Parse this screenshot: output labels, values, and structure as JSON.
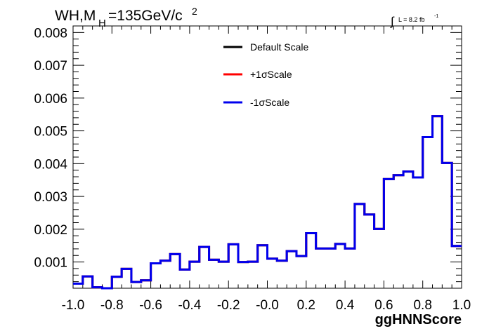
{
  "chart_data": {
    "type": "line",
    "title": {
      "main": "WH,M",
      "sub": "H",
      "rest": "=135GeV/c",
      "sup": "2"
    },
    "lumi": {
      "integral": "∫",
      "text": "L = 8.2 fb",
      "sup": "-1"
    },
    "xlabel": "ggHNNScore",
    "ylabel": "",
    "xlim": [
      -1.0,
      1.0
    ],
    "ylim": [
      0.0002,
      0.0082
    ],
    "x_ticks": [
      {
        "value": -1.0,
        "label": "-1.0"
      },
      {
        "value": -0.8,
        "label": "-0.8"
      },
      {
        "value": -0.6,
        "label": "-0.6"
      },
      {
        "value": -0.4,
        "label": "-0.4"
      },
      {
        "value": -0.2,
        "label": "-0.2"
      },
      {
        "value": 0.0,
        "label": "-0.0"
      },
      {
        "value": 0.2,
        "label": "0.2"
      },
      {
        "value": 0.4,
        "label": "0.4"
      },
      {
        "value": 0.6,
        "label": "0.6"
      },
      {
        "value": 0.8,
        "label": "0.8"
      },
      {
        "value": 1.0,
        "label": "1.0"
      }
    ],
    "y_ticks": [
      {
        "value": 0.001,
        "label": "0.001"
      },
      {
        "value": 0.002,
        "label": "0.002"
      },
      {
        "value": 0.003,
        "label": "0.003"
      },
      {
        "value": 0.004,
        "label": "0.004"
      },
      {
        "value": 0.005,
        "label": "0.005"
      },
      {
        "value": 0.006,
        "label": "0.006"
      },
      {
        "value": 0.007,
        "label": "0.007"
      },
      {
        "value": 0.008,
        "label": "0.008"
      }
    ],
    "bin_edges": [
      -1.0,
      -0.95,
      -0.9,
      -0.85,
      -0.8,
      -0.75,
      -0.7,
      -0.65,
      -0.6,
      -0.55,
      -0.5,
      -0.45,
      -0.4,
      -0.35,
      -0.3,
      -0.25,
      -0.2,
      -0.15,
      -0.1,
      -0.05,
      0.0,
      0.05,
      0.1,
      0.15,
      0.2,
      0.25,
      0.3,
      0.35,
      0.4,
      0.45,
      0.5,
      0.55,
      0.6,
      0.65,
      0.7,
      0.75,
      0.8,
      0.85,
      0.9,
      0.95,
      1.0
    ],
    "series": [
      {
        "name": "Default Scale",
        "color": "#000000",
        "values": [
          0.00034,
          0.00056,
          0.00023,
          0.00019,
          0.00055,
          0.00079,
          0.00039,
          0.00044,
          0.00096,
          0.00104,
          0.00124,
          0.00077,
          0.00101,
          0.00146,
          0.00107,
          0.00101,
          0.00154,
          0.001,
          0.00101,
          0.00151,
          0.0011,
          0.00104,
          0.00133,
          0.00118,
          0.00188,
          0.00141,
          0.00141,
          0.00155,
          0.00141,
          0.00277,
          0.00245,
          0.00201,
          0.00353,
          0.00365,
          0.00376,
          0.00358,
          0.00481,
          0.00545,
          0.00402,
          0.00149
        ]
      },
      {
        "name": "+1σScale",
        "color": "#ff0000",
        "values": [
          0.00034,
          0.00056,
          0.00023,
          0.00019,
          0.00055,
          0.00079,
          0.00039,
          0.00044,
          0.00096,
          0.00104,
          0.00124,
          0.00077,
          0.00101,
          0.00146,
          0.00107,
          0.00101,
          0.00154,
          0.001,
          0.00101,
          0.00151,
          0.0011,
          0.00104,
          0.00133,
          0.00118,
          0.00188,
          0.00141,
          0.00141,
          0.00155,
          0.00141,
          0.00277,
          0.00245,
          0.00201,
          0.00353,
          0.00365,
          0.00376,
          0.00358,
          0.00481,
          0.00545,
          0.00402,
          0.00149
        ]
      },
      {
        "name": "-1σScale",
        "color": "#0000ee",
        "values": [
          0.00034,
          0.00056,
          0.00023,
          0.00019,
          0.00055,
          0.00079,
          0.00039,
          0.00044,
          0.00096,
          0.00104,
          0.00124,
          0.00077,
          0.00101,
          0.00146,
          0.00107,
          0.00101,
          0.00154,
          0.001,
          0.00101,
          0.00151,
          0.0011,
          0.00104,
          0.00133,
          0.00118,
          0.00188,
          0.00141,
          0.00141,
          0.00155,
          0.00141,
          0.00277,
          0.00245,
          0.00201,
          0.00353,
          0.00365,
          0.00376,
          0.00358,
          0.00481,
          0.00545,
          0.00402,
          0.00149
        ]
      }
    ],
    "legend": {
      "placement": "top-center"
    },
    "grid": false
  }
}
